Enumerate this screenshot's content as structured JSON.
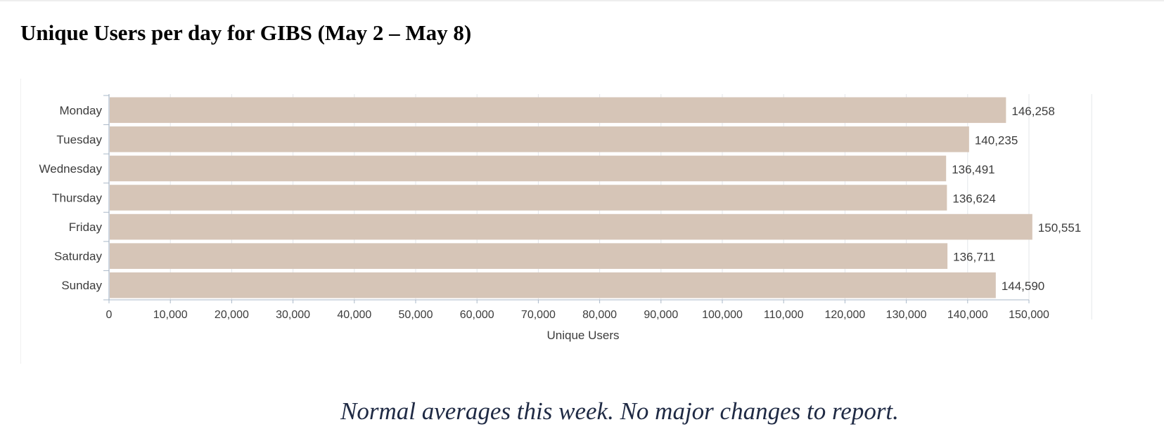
{
  "page": {
    "title": "Unique Users per day for GIBS (May 2 – May 8)",
    "note": "Normal averages this week.  No major changes to report."
  },
  "colors": {
    "bar": "#d6c5b7",
    "grid": "#e3e6ea",
    "axis": "#aab8c8",
    "text": "#3c3c3c",
    "note": "#1f2a44"
  },
  "chart_data": {
    "type": "bar",
    "orientation": "horizontal",
    "categories": [
      "Monday",
      "Tuesday",
      "Wednesday",
      "Thursday",
      "Friday",
      "Saturday",
      "Sunday"
    ],
    "values": [
      146258,
      140235,
      136491,
      136624,
      150551,
      136711,
      144590
    ],
    "value_labels": [
      "146,258",
      "140,235",
      "136,491",
      "136,624",
      "150,551",
      "136,711",
      "144,590"
    ],
    "xlabel": "Unique Users",
    "ylabel": "",
    "xlim": [
      0,
      160000
    ],
    "xticks": [
      0,
      10000,
      20000,
      30000,
      40000,
      50000,
      60000,
      70000,
      80000,
      90000,
      100000,
      110000,
      120000,
      130000,
      140000,
      150000
    ],
    "xtick_labels": [
      "0",
      "10,000",
      "20,000",
      "30,000",
      "40,000",
      "50,000",
      "60,000",
      "70,000",
      "80,000",
      "90,000",
      "100,000",
      "110,000",
      "120,000",
      "130,000",
      "140,000",
      "150,000"
    ],
    "grid": true,
    "legend": "none"
  }
}
